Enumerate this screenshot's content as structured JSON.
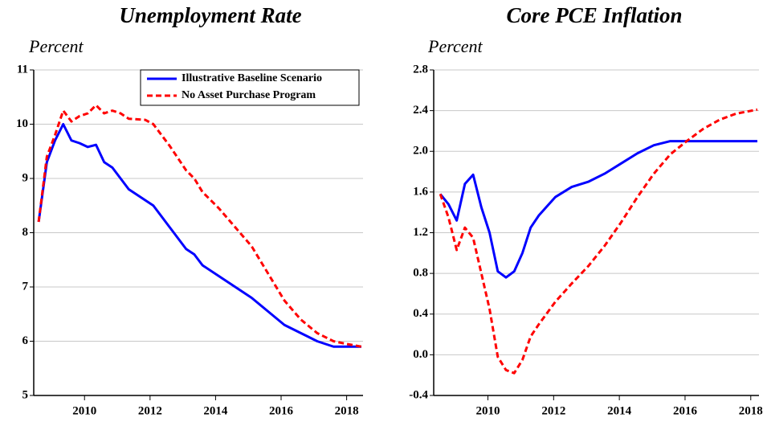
{
  "chart_data": [
    {
      "type": "line",
      "title": "Unemployment Rate",
      "y_label": "Percent",
      "x": [
        2008.6,
        2008.85,
        2009.1,
        2009.35,
        2009.6,
        2009.85,
        2010.1,
        2010.35,
        2010.6,
        2010.85,
        2011.1,
        2011.35,
        2011.85,
        2012.1,
        2012.6,
        2013.1,
        2013.35,
        2013.6,
        2014.1,
        2014.6,
        2015.1,
        2015.6,
        2016.1,
        2016.6,
        2017.1,
        2017.6,
        2018,
        2018.45
      ],
      "series": [
        {
          "name": "Illustrative Baseline Scenario",
          "color": "#0000ff",
          "dash": false,
          "values": [
            8.2,
            9.3,
            9.7,
            10.0,
            9.7,
            9.65,
            9.58,
            9.62,
            9.3,
            9.2,
            9.0,
            8.8,
            8.6,
            8.5,
            8.1,
            7.7,
            7.6,
            7.4,
            7.2,
            7.0,
            6.8,
            6.55,
            6.3,
            6.15,
            6.0,
            5.9,
            5.9,
            5.9
          ]
        },
        {
          "name": "No Asset Purchase Program",
          "color": "#ff0000",
          "dash": true,
          "values": [
            8.2,
            9.4,
            9.8,
            10.25,
            10.05,
            10.15,
            10.2,
            10.35,
            10.2,
            10.25,
            10.2,
            10.1,
            10.08,
            10.0,
            9.6,
            9.15,
            9.0,
            8.75,
            8.45,
            8.1,
            7.75,
            7.25,
            6.75,
            6.4,
            6.15,
            6.0,
            5.95,
            5.9
          ]
        }
      ],
      "xlim": [
        2008.45,
        2018.5
      ],
      "xticks": [
        2010,
        2012,
        2014,
        2016,
        2018
      ],
      "ylim": [
        5,
        11
      ],
      "yticks": [
        5,
        6,
        7,
        8,
        9,
        10,
        11
      ],
      "grid": true,
      "legend": "upper right"
    },
    {
      "type": "line",
      "title": "Core PCE Inflation",
      "y_label": "Percent",
      "x": [
        2008.55,
        2008.8,
        2009.05,
        2009.3,
        2009.55,
        2009.8,
        2010.05,
        2010.3,
        2010.55,
        2010.8,
        2011.05,
        2011.3,
        2011.55,
        2012.05,
        2012.55,
        2013.05,
        2013.55,
        2014.05,
        2014.55,
        2015.05,
        2015.55,
        2016.05,
        2016.55,
        2017.05,
        2017.55,
        2018.2
      ],
      "series": [
        {
          "color": "#0000ff",
          "dash": false,
          "values": [
            1.58,
            1.48,
            1.32,
            1.68,
            1.77,
            1.45,
            1.2,
            0.82,
            0.76,
            0.82,
            1.0,
            1.25,
            1.37,
            1.55,
            1.65,
            1.7,
            1.78,
            1.88,
            1.98,
            2.06,
            2.1,
            2.1,
            2.1,
            2.1,
            2.1,
            2.1
          ]
        },
        {
          "color": "#ff0000",
          "dash": true,
          "values": [
            1.58,
            1.35,
            1.03,
            1.25,
            1.15,
            0.8,
            0.45,
            -0.02,
            -0.15,
            -0.18,
            -0.05,
            0.18,
            0.3,
            0.52,
            0.7,
            0.87,
            1.07,
            1.3,
            1.55,
            1.78,
            1.97,
            2.1,
            2.22,
            2.31,
            2.37,
            2.41
          ]
        }
      ],
      "xlim": [
        2008.35,
        2018.25
      ],
      "xticks": [
        2010,
        2012,
        2014,
        2016,
        2018
      ],
      "ylim": [
        -0.4,
        2.8
      ],
      "yticks": [
        -0.4,
        {
          "value": 0,
          "label": "0.0"
        },
        0.4,
        0.8,
        1.2,
        1.6,
        {
          "value": 2,
          "label": "2.0"
        },
        2.4,
        2.8
      ],
      "grid": true
    }
  ]
}
